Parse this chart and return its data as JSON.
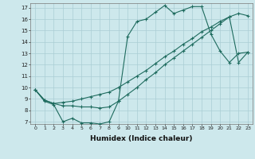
{
  "xlabel": "Humidex (Indice chaleur)",
  "xlim": [
    -0.5,
    23.5
  ],
  "ylim": [
    6.8,
    17.4
  ],
  "yticks": [
    7,
    8,
    9,
    10,
    11,
    12,
    13,
    14,
    15,
    16,
    17
  ],
  "xticks": [
    0,
    1,
    2,
    3,
    4,
    5,
    6,
    7,
    8,
    9,
    10,
    11,
    12,
    13,
    14,
    15,
    16,
    17,
    18,
    19,
    20,
    21,
    22,
    23
  ],
  "background_color": "#cde8ec",
  "grid_color": "#aacdd4",
  "line_color": "#1e6b5e",
  "line1_x": [
    0,
    1,
    2,
    3,
    4,
    5,
    6,
    7,
    8,
    9,
    10,
    11,
    12,
    13,
    14,
    15,
    16,
    17,
    18,
    19,
    20,
    21,
    22,
    23
  ],
  "line1_y": [
    9.8,
    8.8,
    8.5,
    7.0,
    7.3,
    6.9,
    6.9,
    6.8,
    7.0,
    8.8,
    14.5,
    15.8,
    16.0,
    16.6,
    17.2,
    16.5,
    16.8,
    17.1,
    17.1,
    14.7,
    13.2,
    12.2,
    13.0,
    13.1
  ],
  "line2_x": [
    0,
    1,
    2,
    3,
    4,
    5,
    6,
    7,
    8,
    9,
    10,
    11,
    12,
    13,
    14,
    15,
    16,
    17,
    18,
    19,
    20,
    21,
    22,
    23
  ],
  "line2_y": [
    9.8,
    8.9,
    8.6,
    8.7,
    8.8,
    9.0,
    9.2,
    9.4,
    9.6,
    10.0,
    10.5,
    11.0,
    11.5,
    12.1,
    12.7,
    13.2,
    13.8,
    14.3,
    14.9,
    15.3,
    15.8,
    16.2,
    16.5,
    16.3
  ],
  "line3_x": [
    0,
    1,
    2,
    3,
    4,
    5,
    6,
    7,
    8,
    9,
    10,
    11,
    12,
    13,
    14,
    15,
    16,
    17,
    18,
    19,
    20,
    21,
    22,
    23
  ],
  "line3_y": [
    9.8,
    8.9,
    8.6,
    8.4,
    8.4,
    8.3,
    8.3,
    8.2,
    8.3,
    8.8,
    9.4,
    10.0,
    10.7,
    11.3,
    12.0,
    12.6,
    13.2,
    13.8,
    14.4,
    15.0,
    15.6,
    16.2,
    12.2,
    13.1
  ]
}
